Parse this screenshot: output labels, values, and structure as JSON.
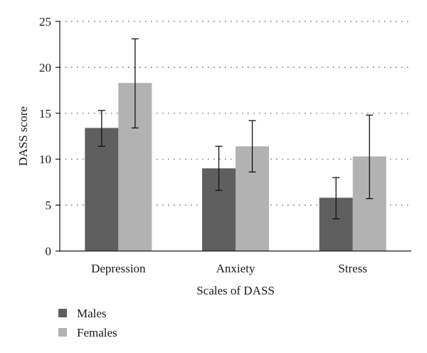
{
  "chart_data": {
    "type": "bar",
    "title": "",
    "xlabel": "Scales of DASS",
    "ylabel": "DASS score",
    "ylim": [
      0,
      25
    ],
    "yticks": [
      0,
      5,
      10,
      15,
      20,
      25
    ],
    "grid": "horizontal-dotted",
    "legend_position": "bottom-left",
    "categories": [
      "Depression",
      "Anxiety",
      "Stress"
    ],
    "series": [
      {
        "name": "Males",
        "color": "#5f5f5f",
        "values": [
          13.4,
          9.0,
          5.8
        ],
        "error_low": [
          11.4,
          6.6,
          3.5
        ],
        "error_high": [
          15.3,
          11.4,
          8.0
        ]
      },
      {
        "name": "Females",
        "color": "#b2b2b2",
        "values": [
          18.3,
          11.4,
          10.3
        ],
        "error_low": [
          13.4,
          8.6,
          5.7
        ],
        "error_high": [
          23.1,
          14.2,
          14.8
        ]
      }
    ]
  }
}
